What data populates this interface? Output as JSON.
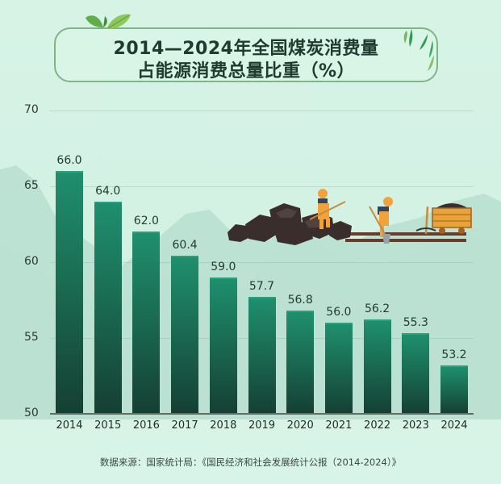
{
  "title": {
    "line1": "2014—2024年全国煤炭消费量",
    "line2": "占能源消费总量比重（%）"
  },
  "source": "数据来源：国家统计局：《国民经济和社会发展统计公报（2014-2024）》",
  "colors": {
    "bar_top": "#1f8f6e",
    "bar_bottom": "#153f33",
    "background": "#d6f3e6",
    "title_border": "#7fb585"
  },
  "chart_data": {
    "type": "bar",
    "title": "2014—2024年全国煤炭消费量占能源消费总量比重（%）",
    "xlabel": "",
    "ylabel": "",
    "categories": [
      "2014",
      "2015",
      "2016",
      "2017",
      "2018",
      "2019",
      "2020",
      "2021",
      "2022",
      "2023",
      "2024"
    ],
    "values": [
      66.0,
      64.0,
      62.0,
      60.4,
      59.0,
      57.7,
      56.8,
      56.0,
      56.2,
      55.3,
      53.2
    ],
    "value_labels": [
      "66.0",
      "64.0",
      "62.0",
      "60.4",
      "59.0",
      "57.7",
      "56.8",
      "56.0",
      "56.2",
      "55.3",
      "53.2"
    ],
    "ylim": [
      50,
      70
    ],
    "yticks": [
      "50",
      "55",
      "60",
      "65",
      "70"
    ],
    "grid": true,
    "legend": null
  }
}
